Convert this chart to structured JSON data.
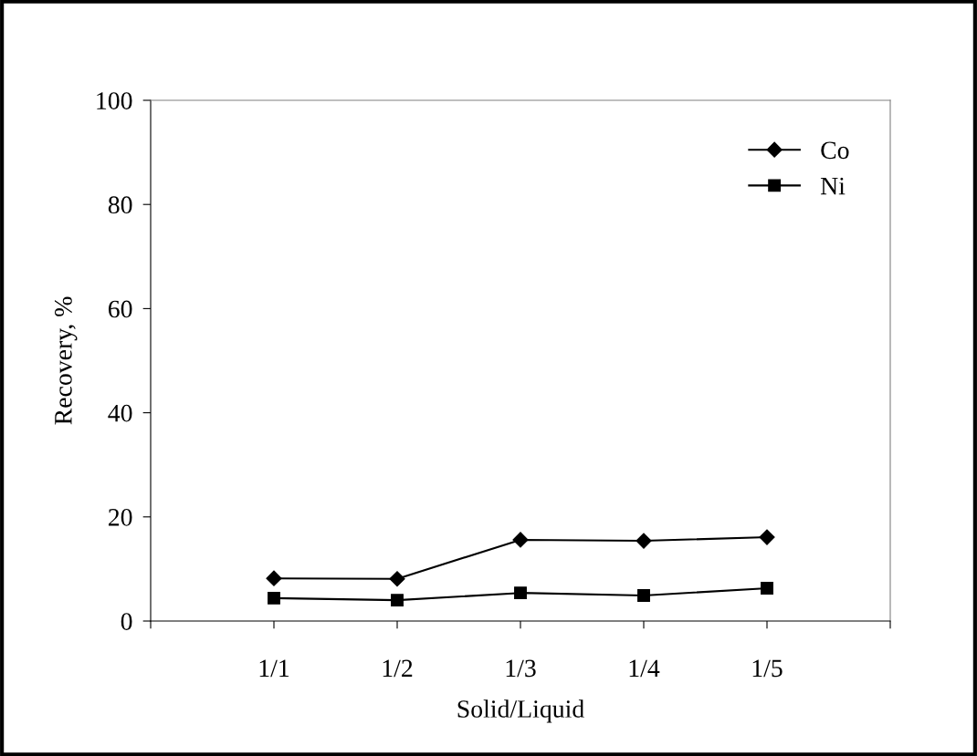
{
  "chart_data": {
    "type": "line",
    "xlabel": "Solid/Liquid",
    "ylabel": "Recovery, %",
    "categories": [
      "1/1",
      "1/2",
      "1/3",
      "1/4",
      "1/5"
    ],
    "series": [
      {
        "name": "Co",
        "color": "#000000",
        "marker": "diamond",
        "values": [
          8.2,
          8.1,
          15.6,
          15.4,
          16.1
        ]
      },
      {
        "name": "Ni",
        "color": "#000000",
        "marker": "square",
        "values": [
          4.4,
          4.0,
          5.4,
          4.9,
          6.3
        ]
      }
    ],
    "ylim": [
      0,
      100
    ],
    "yticks": [
      0,
      20,
      40,
      60,
      80,
      100
    ],
    "grid": false,
    "legend": "top right",
    "line_style": "solid"
  }
}
